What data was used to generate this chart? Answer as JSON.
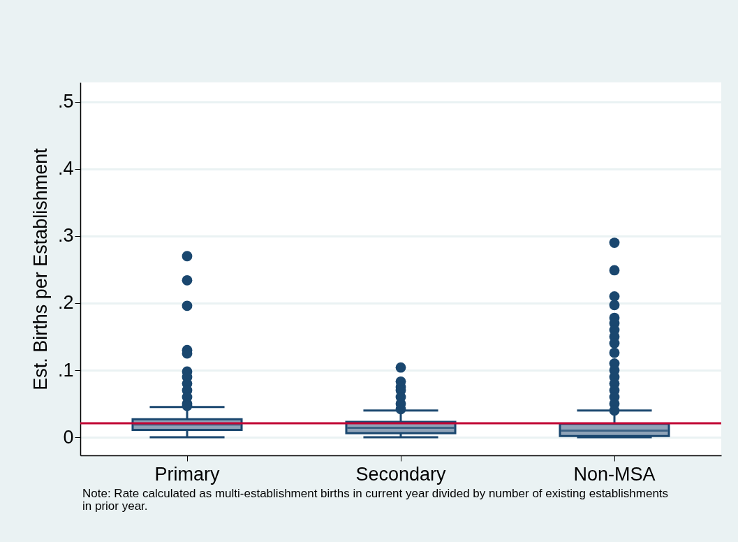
{
  "chart_data": {
    "type": "box",
    "ylabel": "Est. Births per Establishment",
    "categories": [
      "Primary",
      "Secondary",
      "Non-MSA"
    ],
    "series": [
      {
        "color": "#1a476f",
        "boxes": [
          {
            "low": 0,
            "q1": 0.011,
            "median": 0.019,
            "q3": 0.027,
            "high": 0.045,
            "outliers": [
              0.27,
              0.234,
              0.196,
              0.13,
              0.125,
              0.098,
              0.09,
              0.08,
              0.07,
              0.06,
              0.05,
              0.047
            ]
          },
          {
            "low": 0,
            "q1": 0.006,
            "median": 0.014,
            "q3": 0.023,
            "high": 0.04,
            "outliers": [
              0.104,
              0.083,
              0.075,
              0.07,
              0.06,
              0.05,
              0.042
            ]
          },
          {
            "low": 0,
            "q1": 0.002,
            "median": 0.01,
            "q3": 0.02,
            "high": 0.04,
            "outliers": [
              0.29,
              0.249,
              0.21,
              0.197,
              0.178,
              0.17,
              0.16,
              0.15,
              0.14,
              0.126,
              0.11,
              0.1,
              0.09,
              0.08,
              0.07,
              0.06,
              0.05,
              0.04
            ]
          }
        ]
      }
    ],
    "ylim": [
      -0.027,
      0.529
    ],
    "yticks": [
      0,
      {
        "value": 0.1,
        "label": ".1"
      },
      {
        "value": 0.2,
        "label": ".2"
      },
      {
        "value": 0.3,
        "label": ".3"
      },
      {
        "value": 0.4,
        "label": ".4"
      },
      {
        "value": 0.5,
        "label": ".5"
      }
    ],
    "grid": "y",
    "ref_lines": [
      {
        "axis": "y",
        "value": 0.021,
        "color": "#c10534"
      }
    ],
    "annotations": [
      "Note: Rate calculated as multi-establishment births in current year divided by number of existing establishments in prior year."
    ]
  }
}
